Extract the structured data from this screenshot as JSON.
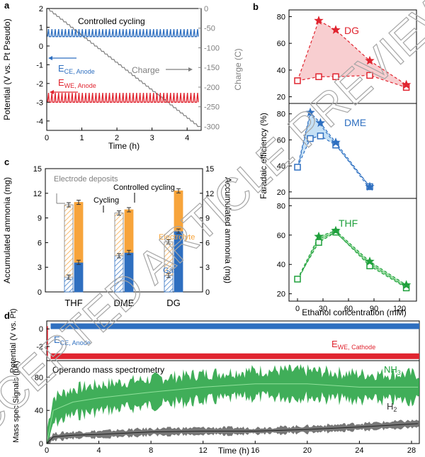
{
  "watermark": "ACCEPTED ARTICLE PREVIEW",
  "colors": {
    "blue": "#2e6fc0",
    "red": "#e0242f",
    "gray": "#7f7f7f",
    "orange": "#f7a43b",
    "green": "#1fa03c",
    "dark": "#333333",
    "lightred": "#f6c2c4",
    "lightblue": "#b8daf4",
    "lightgreen": "#8fd896"
  },
  "chart_data": [
    {
      "panel": "a",
      "type": "line",
      "title": "Controlled cycling",
      "xlabel": "Time (h)",
      "ylabel": "Potential (V vs. Pt Pseudo)",
      "y2label": "Charge (C)",
      "xlim": [
        0,
        4.4
      ],
      "ylim": [
        -4.5,
        2.0
      ],
      "y2lim": [
        -310,
        0
      ],
      "xticks": [
        "0",
        "1",
        "2",
        "3",
        "4"
      ],
      "yticks": [
        "2",
        "1",
        "0",
        "-1",
        "-2",
        "-3",
        "-4"
      ],
      "y2ticks": [
        "0",
        "-50",
        "-100",
        "-150",
        "-200",
        "-250",
        "-300"
      ],
      "series": [
        {
          "name": "E_CE, Anode",
          "label_main": "E",
          "label_sub": "CE, Anode",
          "baseline": 0.5,
          "spike": 0.9,
          "color": "blue"
        },
        {
          "name": "E_WE, Anode",
          "label_main": "E",
          "label_sub": "WE, Anode",
          "baseline": -3.0,
          "spike": -2.5,
          "color": "red"
        },
        {
          "name": "Charge",
          "x": [
            0,
            4.3
          ],
          "y": [
            0,
            -300
          ],
          "color": "gray"
        }
      ]
    },
    {
      "panel": "b",
      "type": "line",
      "xlabel": "Ethanol concentration (mM)",
      "ylabel": "Faradaic efficiency (%)",
      "xlim": [
        -10,
        140
      ],
      "xticks": [
        "0",
        "30",
        "60",
        "90",
        "120"
      ],
      "subplots": [
        {
          "name": "DG",
          "ylim": [
            15,
            85
          ],
          "yticks": [
            "20",
            "40",
            "60",
            "80"
          ],
          "color": "red",
          "cycling": {
            "x": [
              0,
              25,
              45,
              85,
              128
            ],
            "y": [
              32,
              35,
              35,
              36,
              27
            ]
          },
          "controlled": {
            "x": [
              25,
              45,
              85,
              128
            ],
            "y": [
              77,
              70,
              47,
              29
            ]
          }
        },
        {
          "name": "DME",
          "ylim": [
            15,
            88
          ],
          "yticks": [
            "20",
            "40",
            "60",
            "80"
          ],
          "color": "blue",
          "cycling": {
            "x": [
              0,
              15,
              27,
              45,
              85
            ],
            "y": [
              39,
              61,
              63,
              56,
              24
            ]
          },
          "controlled": {
            "x": [
              15,
              27,
              45,
              85
            ],
            "y": [
              81,
              73,
              58,
              24
            ]
          }
        },
        {
          "name": "THF",
          "ylim": [
            15,
            85
          ],
          "yticks": [
            "20",
            "40",
            "60",
            "80"
          ],
          "color": "green",
          "cycling": {
            "x": [
              0,
              25,
              45,
              85,
              128
            ],
            "y": [
              30,
              55,
              62,
              39,
              24
            ]
          },
          "controlled": {
            "x": [
              25,
              45,
              85,
              128
            ],
            "y": [
              59,
              63,
              42,
              26
            ]
          }
        }
      ]
    },
    {
      "panel": "c",
      "type": "bar",
      "ylabel": "Accumulated ammonia (mg)",
      "y2label": "Accumulated ammonia (mg)",
      "ylim": [
        0,
        15
      ],
      "yticks": [
        "0",
        "3",
        "6",
        "9",
        "12",
        "15"
      ],
      "categories": [
        "THF",
        "DME",
        "DG"
      ],
      "series": [
        {
          "name": "Cycling",
          "gas": [
            1.8,
            4.4,
            2.0
          ],
          "total": [
            10.6,
            9.6,
            6.1
          ]
        },
        {
          "name": "Controlled cycling",
          "gas": [
            3.6,
            4.8,
            7.4
          ],
          "total": [
            10.9,
            10.0,
            12.3
          ]
        }
      ],
      "annotations": {
        "electrode_deposits": "Electrode deposits",
        "cycling": "Cycling",
        "controlled": "Controlled cycling",
        "electrolyte": "Electrolyte",
        "gas": "Gas"
      }
    },
    {
      "panel": "d",
      "type": "line",
      "xlabel": "Time (h)",
      "ylabel_top": "Potential (V vs. Pt)",
      "ylabel_bottom": "Mass spec Signals (pA)",
      "xlim": [
        0,
        28.6
      ],
      "xticks": [
        "0",
        "4",
        "8",
        "12",
        "16",
        "20",
        "24",
        "28"
      ],
      "top": {
        "ylim": [
          -3.6,
          0.9
        ],
        "yticks": [
          "0",
          "-2"
        ],
        "series": [
          {
            "name": "E_CE, Anode",
            "label_main": "E",
            "label_sub": "CE, Anode",
            "value": 0.3,
            "color": "blue"
          },
          {
            "name": "E_WE, Cathode",
            "label_main": "E",
            "label_sub": "WE, Cathode",
            "value": -3.1,
            "color": "red"
          }
        ]
      },
      "bottom": {
        "title": "Operando mass spectrometry",
        "ylim": [
          0,
          100
        ],
        "yticks": [
          "0",
          "40",
          "80"
        ],
        "series": [
          {
            "name": "NH3",
            "label_main": "NH",
            "label_sub": "3",
            "x": [
              0,
              0.5,
              2,
              4,
              8,
              12,
              16,
              20,
              24,
              28.5
            ],
            "y": [
              0,
              40,
              50,
              55,
              62,
              68,
              72,
              72,
              68,
              68
            ],
            "color": "green"
          },
          {
            "name": "H2",
            "label_main": "H",
            "label_sub": "2",
            "x": [
              0,
              0.5,
              2,
              4,
              8,
              12,
              16,
              20,
              24,
              28.5
            ],
            "y": [
              0,
              8,
              10,
              11,
              14,
              15,
              15,
              17,
              20,
              24
            ],
            "color": "dark"
          }
        ]
      }
    }
  ]
}
